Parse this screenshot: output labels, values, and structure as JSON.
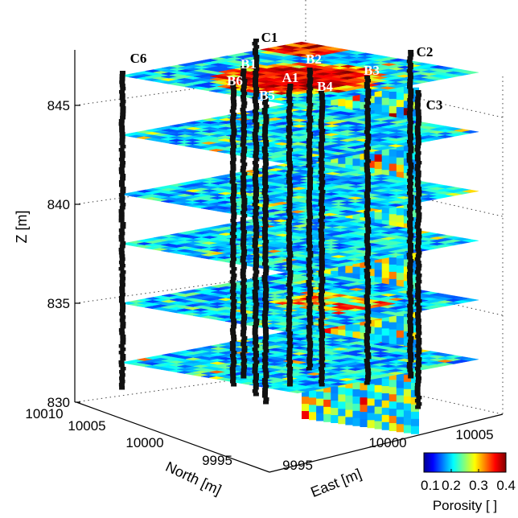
{
  "chart_data": {
    "type": "heatmap",
    "title": "",
    "colormap": "jet",
    "zlabel": "Z [m]",
    "xlabel": "East [m]",
    "ylabel": "North [m]",
    "z_ticks": [
      {
        "value": 845,
        "label": "845"
      },
      {
        "value": 840,
        "label": "840"
      },
      {
        "value": 835,
        "label": "835"
      },
      {
        "value": 830,
        "label": "830"
      }
    ],
    "zlim": [
      830,
      848
    ],
    "north_ticks": [
      {
        "value": 10010,
        "label": "10010"
      },
      {
        "value": 10005,
        "label": "10005"
      },
      {
        "value": 10000,
        "label": "10000"
      },
      {
        "value": 9995,
        "label": "9995"
      }
    ],
    "east_ticks": [
      {
        "value": 9995,
        "label": "9995"
      },
      {
        "value": 10000,
        "label": "10000"
      },
      {
        "value": 10005,
        "label": "10005"
      }
    ],
    "colorbar": {
      "label": "Porosity [ ]",
      "range": [
        0.1,
        0.4
      ],
      "ticks": [
        {
          "value": 0.1,
          "label": "0.1"
        },
        {
          "value": 0.2,
          "label": "0.2"
        },
        {
          "value": 0.3,
          "label": "0.3"
        },
        {
          "value": 0.4,
          "label": "0.4"
        }
      ]
    },
    "slice_depths": [
      846.5,
      843.5,
      840.5,
      838,
      835,
      832
    ],
    "wells": [
      {
        "name": "C1",
        "label": "C1"
      },
      {
        "name": "C2",
        "label": "C2"
      },
      {
        "name": "C3",
        "label": "C3"
      },
      {
        "name": "C6",
        "label": "C6"
      },
      {
        "name": "B1",
        "label": "B1"
      },
      {
        "name": "B2",
        "label": "B2"
      },
      {
        "name": "B3",
        "label": "B3"
      },
      {
        "name": "B4",
        "label": "B4"
      },
      {
        "name": "B5",
        "label": "B5"
      },
      {
        "name": "B6",
        "label": "B6"
      },
      {
        "name": "A1",
        "label": "A1"
      }
    ]
  }
}
